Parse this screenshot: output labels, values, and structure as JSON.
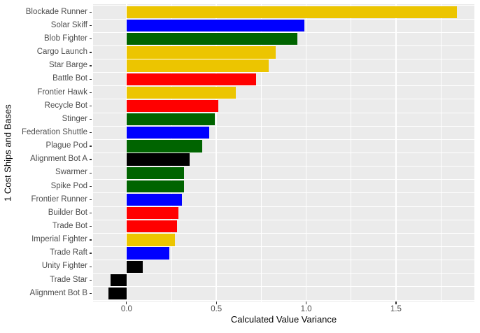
{
  "chart_data": {
    "type": "bar",
    "orientation": "horizontal",
    "title": "",
    "xlabel": "Calculated Value Variance",
    "ylabel": "1 Cost Ships and Bases",
    "xlim": [
      -0.1865,
      1.9365
    ],
    "x_ticks": [
      0.0,
      0.5,
      1.0,
      1.5
    ],
    "x_tick_labels": [
      "0.0",
      "0.5",
      "1.0",
      "1.5"
    ],
    "x_minor_ticks": [
      0.25,
      0.75,
      1.25,
      1.75
    ],
    "grid": true,
    "legend": false,
    "bars": [
      {
        "label": "Blockade Runner",
        "value": 1.84,
        "color": "gold"
      },
      {
        "label": "Solar Skiff",
        "value": 0.99,
        "color": "blue"
      },
      {
        "label": "Blob Fighter",
        "value": 0.95,
        "color": "green"
      },
      {
        "label": "Cargo Launch",
        "value": 0.83,
        "color": "gold"
      },
      {
        "label": "Star Barge",
        "value": 0.79,
        "color": "gold"
      },
      {
        "label": "Battle Bot",
        "value": 0.72,
        "color": "red"
      },
      {
        "label": "Frontier Hawk",
        "value": 0.61,
        "color": "gold"
      },
      {
        "label": "Recycle Bot",
        "value": 0.51,
        "color": "red"
      },
      {
        "label": "Stinger",
        "value": 0.49,
        "color": "green"
      },
      {
        "label": "Federation Shuttle",
        "value": 0.46,
        "color": "blue"
      },
      {
        "label": "Plague Pod",
        "value": 0.42,
        "color": "green"
      },
      {
        "label": "Alignment Bot A",
        "value": 0.35,
        "color": "black"
      },
      {
        "label": "Swarmer",
        "value": 0.32,
        "color": "green"
      },
      {
        "label": "Spike Pod",
        "value": 0.32,
        "color": "green"
      },
      {
        "label": "Frontier Runner",
        "value": 0.31,
        "color": "blue"
      },
      {
        "label": "Builder Bot",
        "value": 0.29,
        "color": "red"
      },
      {
        "label": "Trade Bot",
        "value": 0.28,
        "color": "red"
      },
      {
        "label": "Imperial Fighter",
        "value": 0.27,
        "color": "gold"
      },
      {
        "label": "Trade Raft",
        "value": 0.24,
        "color": "blue"
      },
      {
        "label": "Unity Fighter",
        "value": 0.09,
        "color": "black"
      },
      {
        "label": "Trade Star",
        "value": -0.09,
        "color": "black"
      },
      {
        "label": "Alignment Bot B",
        "value": -0.1,
        "color": "black"
      }
    ]
  },
  "style": {
    "palette": {
      "gold": "#ECC500",
      "blue": "#0000FF",
      "green": "#006400",
      "red": "#FF0000",
      "black": "#000000"
    },
    "background": "#FFFFFF",
    "panel_bg": "#EBEBEB",
    "grid_color": "#FFFFFF",
    "tick_mark_color": "#333333",
    "tick_label_color": "#4D4D4D",
    "axis_title_color": "#000000"
  }
}
